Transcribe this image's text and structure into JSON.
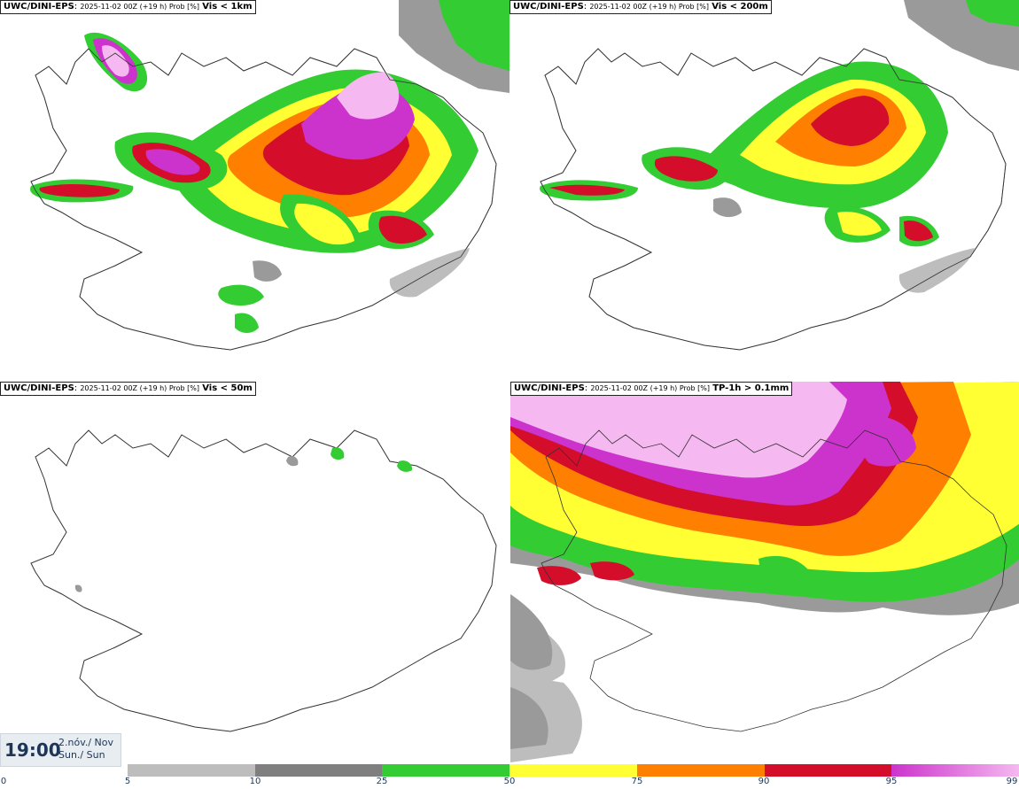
{
  "panels": [
    {
      "model": "UWC/DINI-EPS",
      "run": "2025-11-02 00Z (+19 h) Prob [%]",
      "variable": "Vis < 1km"
    },
    {
      "model": "UWC/DINI-EPS",
      "run": "2025-11-02 00Z (+19 h) Prob [%]",
      "variable": "Vis < 200m"
    },
    {
      "model": "UWC/DINI-EPS",
      "run": "2025-11-02 00Z (+19 h) Prob [%]",
      "variable": "Vis < 50m"
    },
    {
      "model": "UWC/DINI-EPS",
      "run": "2025-11-02 00Z (+19 h) Prob [%]",
      "variable": "TP-1h > 0.1mm"
    }
  ],
  "timestamp": {
    "time": "19:00",
    "date_line1": "2.nóv./ Nov",
    "date_line2": "Sun./ Sun"
  },
  "legend": {
    "ticks": [
      "0",
      "5",
      "10",
      "25",
      "50",
      "75",
      "90",
      "95",
      "99"
    ],
    "colors": [
      "#bdbdbd",
      "#7f7f7f",
      "#33cc33",
      "#ffff33",
      "#ff7f00",
      "#d40d2b",
      "#cc33cc",
      "#f5b8f0"
    ]
  }
}
